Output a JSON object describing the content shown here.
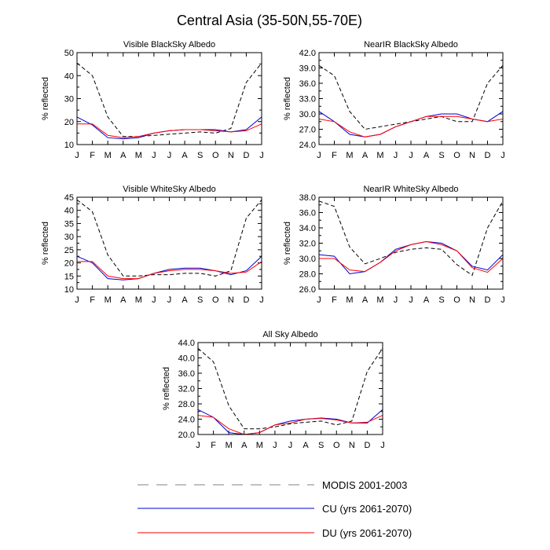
{
  "figure_title": "Central Asia (35-50N,55-70E)",
  "legend": [
    {
      "label": "MODIS 2001-2003",
      "color": "#808080",
      "dash": true
    },
    {
      "label": "CU (yrs 2061-2070)",
      "color": "#0000cc",
      "dash": false
    },
    {
      "label": "DU (yrs 2061-2070)",
      "color": "#ff0000",
      "dash": false
    }
  ],
  "chart_data": [
    {
      "type": "line",
      "title": "Visible BlackSky Albedo",
      "ylabel": "% reflected",
      "categories": [
        "J",
        "F",
        "M",
        "A",
        "M",
        "J",
        "J",
        "A",
        "S",
        "O",
        "N",
        "D",
        "J"
      ],
      "ylim": [
        10,
        50
      ],
      "yticks": [
        "10",
        "20",
        "30",
        "40",
        "50"
      ],
      "series": [
        {
          "name": "MODIS 2001-2003",
          "color": "#000000",
          "dash": true,
          "values": [
            45.5,
            40,
            22,
            13.5,
            13.5,
            14,
            14.5,
            15,
            15.5,
            15,
            17,
            37,
            45.5
          ]
        },
        {
          "name": "CU (yrs 2061-2070)",
          "color": "#0000cc",
          "dash": false,
          "values": [
            22,
            18.5,
            13,
            12.5,
            13,
            15,
            16,
            16.5,
            16.5,
            16.5,
            15.5,
            16.5,
            22
          ]
        },
        {
          "name": "DU (yrs 2061-2070)",
          "color": "#ff0000",
          "dash": false,
          "values": [
            19,
            19,
            14,
            13,
            13.5,
            15,
            16,
            16.5,
            16.5,
            16,
            15.5,
            16,
            19
          ]
        }
      ]
    },
    {
      "type": "line",
      "title": "NearIR BlackSky Albedo",
      "ylabel": "% reflected",
      "categories": [
        "J",
        "F",
        "M",
        "A",
        "M",
        "J",
        "J",
        "A",
        "S",
        "O",
        "N",
        "D",
        "J"
      ],
      "ylim": [
        24,
        42
      ],
      "yticks": [
        "24.0",
        "27.0",
        "30.0",
        "33.0",
        "36.0",
        "39.0",
        "42.0"
      ],
      "series": [
        {
          "name": "MODIS 2001-2003",
          "color": "#000000",
          "dash": true,
          "values": [
            39.5,
            37.5,
            30.5,
            27,
            27.5,
            28,
            28.5,
            29,
            29.5,
            28.5,
            28.5,
            36,
            39.5
          ]
        },
        {
          "name": "CU (yrs 2061-2070)",
          "color": "#0000cc",
          "dash": false,
          "values": [
            30.5,
            28.5,
            26,
            25.5,
            26,
            27.5,
            28.5,
            29.5,
            30,
            30,
            29,
            28.5,
            30.5
          ]
        },
        {
          "name": "DU (yrs 2061-2070)",
          "color": "#ff0000",
          "dash": false,
          "values": [
            29,
            28.5,
            26.5,
            25.5,
            26,
            27.5,
            28.5,
            29.5,
            29.5,
            29.5,
            29,
            28.5,
            29
          ]
        }
      ]
    },
    {
      "type": "line",
      "title": "Visible WhiteSky Albedo",
      "ylabel": "% reflected",
      "categories": [
        "J",
        "F",
        "M",
        "A",
        "M",
        "J",
        "J",
        "A",
        "S",
        "O",
        "N",
        "D",
        "J"
      ],
      "ylim": [
        10,
        45
      ],
      "yticks": [
        "10",
        "15",
        "20",
        "25",
        "30",
        "35",
        "40",
        "45"
      ],
      "series": [
        {
          "name": "MODIS 2001-2003",
          "color": "#000000",
          "dash": true,
          "values": [
            44,
            39.5,
            23,
            15,
            15,
            15.5,
            15.5,
            16,
            16,
            15,
            17,
            37,
            44
          ]
        },
        {
          "name": "CU (yrs 2061-2070)",
          "color": "#0000cc",
          "dash": false,
          "values": [
            22.5,
            20,
            14,
            13.5,
            14,
            16,
            17.5,
            18,
            18,
            17,
            15.5,
            17,
            22.5
          ]
        },
        {
          "name": "DU (yrs 2061-2070)",
          "color": "#ff0000",
          "dash": false,
          "values": [
            20.5,
            20.5,
            15,
            14,
            14,
            16,
            17,
            17.5,
            17.5,
            17,
            16,
            16.5,
            20.5
          ]
        }
      ]
    },
    {
      "type": "line",
      "title": "NearIR WhiteSky Albedo",
      "ylabel": "% reflected",
      "categories": [
        "J",
        "F",
        "M",
        "A",
        "M",
        "J",
        "J",
        "A",
        "S",
        "O",
        "N",
        "D",
        "J"
      ],
      "ylim": [
        26,
        38
      ],
      "yticks": [
        "26.0",
        "28.0",
        "30.0",
        "32.0",
        "34.0",
        "36.0",
        "38.0"
      ],
      "series": [
        {
          "name": "MODIS 2001-2003",
          "color": "#000000",
          "dash": true,
          "values": [
            37.5,
            36.8,
            31.5,
            29.3,
            30,
            30.8,
            31.2,
            31.4,
            31.2,
            29.2,
            27.8,
            34,
            37.5
          ]
        },
        {
          "name": "CU (yrs 2061-2070)",
          "color": "#0000cc",
          "dash": false,
          "values": [
            30.5,
            30.3,
            28,
            28.3,
            29.5,
            31.2,
            31.8,
            32.2,
            32,
            31,
            29,
            28.5,
            30.5
          ]
        },
        {
          "name": "DU (yrs 2061-2070)",
          "color": "#ff0000",
          "dash": false,
          "values": [
            30,
            30,
            28.5,
            28.3,
            29.5,
            31,
            31.8,
            32.2,
            31.8,
            31,
            28.8,
            28.2,
            30
          ]
        }
      ]
    },
    {
      "type": "line",
      "title": "All Sky Albedo",
      "ylabel": "% reflected",
      "categories": [
        "J",
        "F",
        "M",
        "A",
        "M",
        "J",
        "J",
        "A",
        "S",
        "O",
        "N",
        "D",
        "J"
      ],
      "ylim": [
        20,
        44
      ],
      "yticks": [
        "20.0",
        "24.0",
        "28.0",
        "32.0",
        "36.0",
        "40.0",
        "44.0"
      ],
      "series": [
        {
          "name": "MODIS 2001-2003",
          "color": "#000000",
          "dash": true,
          "values": [
            42.5,
            39,
            27.5,
            21.5,
            21.5,
            22,
            22.8,
            23.2,
            23.5,
            22.5,
            23.5,
            36.5,
            42.5
          ]
        },
        {
          "name": "CU (yrs 2061-2070)",
          "color": "#0000cc",
          "dash": false,
          "values": [
            26.5,
            24.5,
            20.5,
            20,
            20.5,
            22.5,
            23.5,
            24,
            24.3,
            24,
            23,
            23,
            26.5
          ]
        },
        {
          "name": "DU (yrs 2061-2070)",
          "color": "#ff0000",
          "dash": false,
          "values": [
            25,
            24.5,
            21.5,
            20,
            20.5,
            22.5,
            23,
            24,
            24.2,
            23.8,
            23,
            23.2,
            25
          ]
        }
      ]
    }
  ]
}
